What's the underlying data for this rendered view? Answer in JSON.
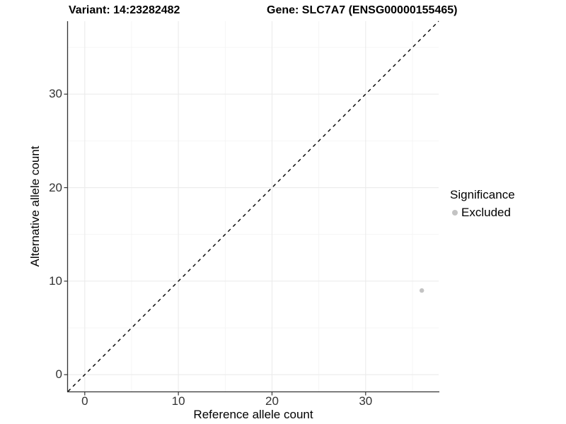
{
  "header": {
    "variant_title": "Variant: 14:23282482",
    "gene_title": "Gene: SLC7A7 (ENSG00000155465)"
  },
  "legend": {
    "title": "Significance",
    "items": [
      {
        "label": "Excluded",
        "color": "#c3c3c3",
        "marker": "circle"
      }
    ]
  },
  "chart_data": {
    "type": "scatter",
    "title": "Variant: 14:23282482 — Gene: SLC7A7 (ENSG00000155465)",
    "xlabel": "Reference allele count",
    "ylabel": "Alternative allele count",
    "xlim": [
      -1.8,
      37.8
    ],
    "ylim": [
      -1.8,
      37.8
    ],
    "x_ticks": [
      0,
      10,
      20,
      30
    ],
    "y_ticks": [
      0,
      10,
      20,
      30
    ],
    "x_minor_ticks": [
      5,
      15,
      25,
      35
    ],
    "y_minor_ticks": [
      5,
      15,
      25,
      35
    ],
    "grid": "major+minor",
    "legend_position": "right",
    "series": [
      {
        "name": "Excluded",
        "color": "#c3c3c3",
        "points": [
          {
            "x": 36,
            "y": 9
          }
        ]
      }
    ],
    "reference_line": {
      "slope": 1,
      "intercept": 0,
      "style": "dashed"
    }
  },
  "colors": {
    "background": "#ffffff",
    "grid_major": "#ebebeb",
    "grid_minor": "#f4f4f4",
    "axis_line": "#333333",
    "tick_text": "#333333",
    "point": "#c3c3c3",
    "reference_line": "#000000"
  }
}
